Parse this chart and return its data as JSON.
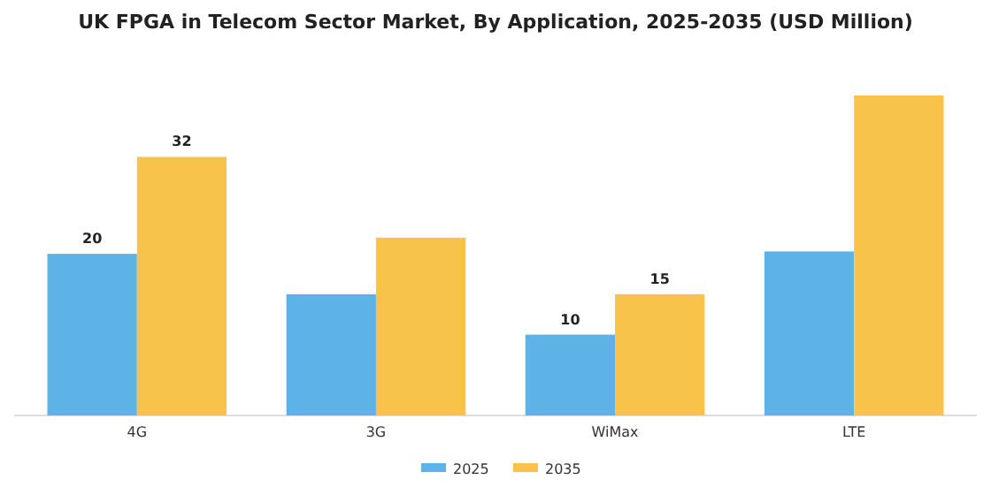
{
  "chart_data": {
    "type": "bar",
    "title": "UK FPGA in Telecom Sector Market, By Application, 2025-2035 (USD Million)",
    "categories": [
      "4G",
      "3G",
      "WiMax",
      "LTE"
    ],
    "series": [
      {
        "name": "2025",
        "color": "#5db3e6",
        "values": [
          20,
          15,
          10,
          20.3
        ],
        "value_labels": [
          "20",
          null,
          "10",
          null
        ]
      },
      {
        "name": "2035",
        "color": "#f7c34a",
        "values": [
          32,
          22,
          15,
          39.6
        ],
        "value_labels": [
          "32",
          null,
          "15",
          null
        ]
      }
    ],
    "legend": "bottom"
  }
}
